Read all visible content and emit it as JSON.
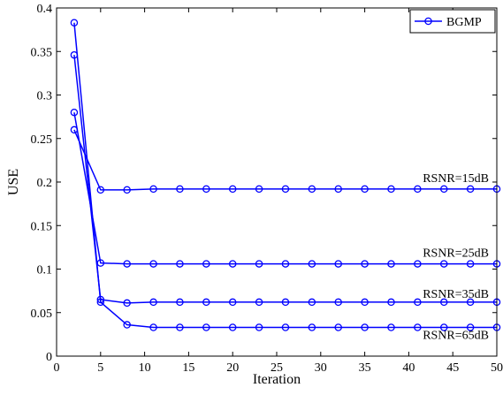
{
  "chart_data": {
    "type": "line",
    "xlabel": "Iteration",
    "ylabel": "USE",
    "xlim": [
      0,
      50
    ],
    "ylim": [
      0,
      0.4
    ],
    "xticks": [
      0,
      5,
      10,
      15,
      20,
      25,
      30,
      35,
      40,
      45,
      50
    ],
    "yticks": [
      0,
      0.05,
      0.1,
      0.15,
      0.2,
      0.25,
      0.3,
      0.35,
      0.4
    ],
    "xtick_labels": [
      "0",
      "5",
      "10",
      "15",
      "20",
      "25",
      "30",
      "35",
      "40",
      "45",
      "50"
    ],
    "ytick_labels": [
      "0",
      "0.05",
      "0.1",
      "0.15",
      "0.2",
      "0.25",
      "0.3",
      "0.35",
      "0.4"
    ],
    "grid": false,
    "legend": {
      "entries": [
        "BGMP"
      ],
      "location": "top-right"
    },
    "series_color": "#0000ff",
    "marker": "circle",
    "x": [
      2,
      5,
      8,
      11,
      14,
      17,
      20,
      23,
      26,
      29,
      32,
      35,
      38,
      41,
      44,
      47,
      50
    ],
    "series": [
      {
        "label": "RSNR=15dB",
        "values": [
          0.26,
          0.191,
          0.191,
          0.192,
          0.192,
          0.192,
          0.192,
          0.192,
          0.192,
          0.192,
          0.192,
          0.192,
          0.192,
          0.192,
          0.192,
          0.192,
          0.192
        ]
      },
      {
        "label": "RSNR=25dB",
        "values": [
          0.28,
          0.107,
          0.106,
          0.106,
          0.106,
          0.106,
          0.106,
          0.106,
          0.106,
          0.106,
          0.106,
          0.106,
          0.106,
          0.106,
          0.106,
          0.106,
          0.106
        ]
      },
      {
        "label": "RSNR=35dB",
        "values": [
          0.346,
          0.065,
          0.061,
          0.062,
          0.062,
          0.062,
          0.062,
          0.062,
          0.062,
          0.062,
          0.062,
          0.062,
          0.062,
          0.062,
          0.062,
          0.062,
          0.062
        ]
      },
      {
        "label": "RSNR=65dB",
        "values": [
          0.383,
          0.062,
          0.036,
          0.033,
          0.033,
          0.033,
          0.033,
          0.033,
          0.033,
          0.033,
          0.033,
          0.033,
          0.033,
          0.033,
          0.033,
          0.033,
          0.033
        ]
      }
    ]
  }
}
